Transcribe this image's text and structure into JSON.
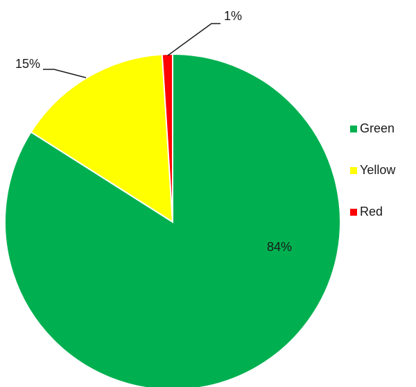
{
  "chart_data": {
    "type": "pie",
    "title": "",
    "categories": [
      "Green",
      "Yellow",
      "Red"
    ],
    "values": [
      84,
      15,
      1
    ],
    "value_labels": [
      "84%",
      "15%",
      "1%"
    ],
    "colors": [
      "#00B050",
      "#FFFF00",
      "#FF0000"
    ],
    "legend": {
      "position": "right",
      "items": [
        {
          "label": "Green",
          "color": "#00B050"
        },
        {
          "label": "Yellow",
          "color": "#FFFF00"
        },
        {
          "label": "Red",
          "color": "#FF0000"
        }
      ]
    }
  }
}
